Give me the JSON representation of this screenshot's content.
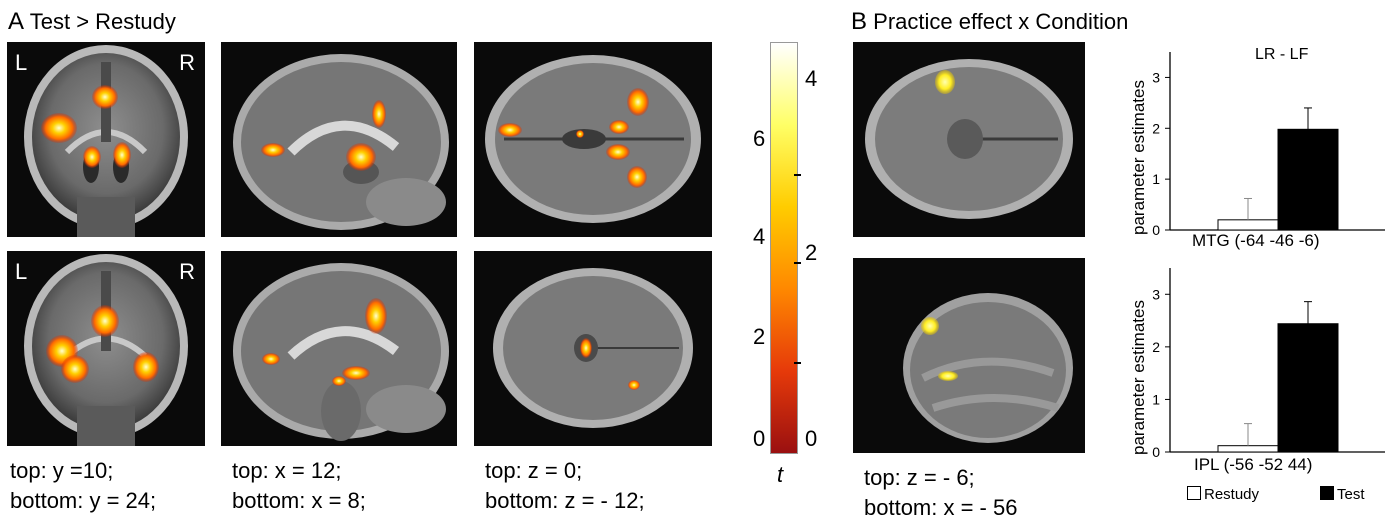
{
  "panel_a": {
    "title_letter": "A",
    "title": "Test > Restudy",
    "left_label": "L",
    "right_label": "R",
    "captions": [
      {
        "top": "top: y =10;",
        "bottom": "bottom: y = 24;"
      },
      {
        "top": "top: x = 12;",
        "bottom": "bottom: x = 8;"
      },
      {
        "top": "top: z = 0;",
        "bottom": "bottom: z = - 12;"
      }
    ]
  },
  "colorbar": {
    "left_ticks": [
      "6",
      "4",
      "2",
      "0"
    ],
    "right_ticks": [
      "4",
      "2",
      "0"
    ],
    "label": "t",
    "colors": [
      "#ffffff",
      "#ffff66",
      "#ffcc00",
      "#ff8800",
      "#e63a0a",
      "#9a1010"
    ]
  },
  "panel_b": {
    "title_letter": "B",
    "title": "Practice effect x Condition",
    "caption_top": "top: z = - 6;",
    "caption_bottom": "bottom: x = - 56"
  },
  "chart_data": [
    {
      "type": "bar",
      "title": "LR - LF",
      "xlabel": "MTG (-64 -46 -6)",
      "ylabel": "parameter estimates",
      "categories": [
        "Restudy",
        "Test"
      ],
      "values": [
        0.2,
        1.98
      ],
      "errors": [
        0.42,
        0.42
      ],
      "ylim": [
        0,
        3.5
      ],
      "yticks": [
        "0",
        "1",
        "2",
        "3"
      ]
    },
    {
      "type": "bar",
      "title": "",
      "xlabel": "IPL (-56 -52 44)",
      "ylabel": "parameter estimates",
      "categories": [
        "Restudy",
        "Test"
      ],
      "values": [
        0.12,
        2.44
      ],
      "errors": [
        0.42,
        0.42
      ],
      "ylim": [
        0,
        3.5
      ],
      "yticks": [
        "0",
        "1",
        "2",
        "3"
      ]
    }
  ],
  "legend": {
    "restudy_label": "Restudy",
    "test_label": "Test",
    "restudy_color": "#ffffff",
    "test_color": "#000000"
  }
}
